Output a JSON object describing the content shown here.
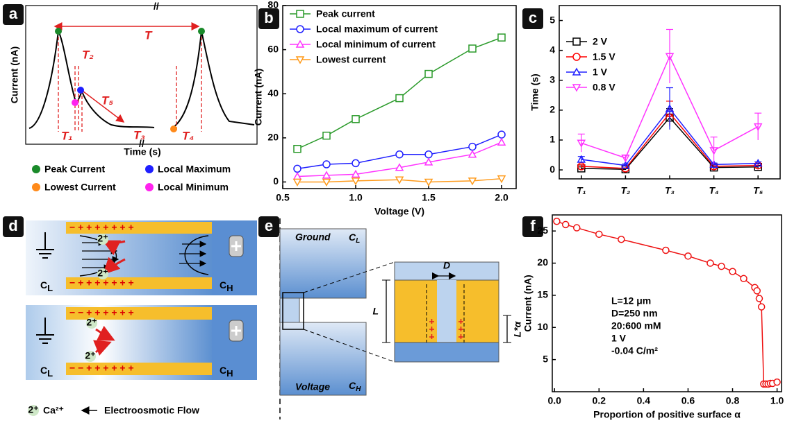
{
  "chart_data": [
    {
      "type": "line",
      "xlabel": "Voltage (V)",
      "ylabel": "Current (nA)",
      "legend": "upper left",
      "x": [
        0.6,
        0.8,
        1.0,
        1.3,
        1.5,
        1.8,
        2.0
      ],
      "series": [
        {
          "name": "Peak current",
          "color": "#2a9a2a",
          "marker": "square",
          "values": [
            15,
            21,
            28.5,
            38,
            49,
            60.5,
            65.5
          ]
        },
        {
          "name": "Local maximum of current",
          "color": "#1f1fff",
          "marker": "circle",
          "values": [
            6,
            8,
            8.5,
            12.5,
            12.5,
            16,
            21.5
          ]
        },
        {
          "name": "Local minimum of current",
          "color": "#ff33ff",
          "marker": "triangle",
          "values": [
            2.5,
            3,
            3.5,
            6.5,
            9,
            12.5,
            18
          ]
        },
        {
          "name": "Lowest current",
          "color": "#ff9a1a",
          "marker": "down",
          "values": [
            0,
            0,
            0.5,
            1,
            0,
            0.5,
            1.5
          ]
        }
      ],
      "xlim": [
        0.5,
        2.1
      ],
      "xticks": [
        0.5,
        {
          "value": 1,
          "label": "1.0"
        },
        1.5,
        {
          "value": 2,
          "label": "2.0"
        }
      ],
      "ylim": [
        -3,
        80
      ],
      "yticks": [
        0,
        20,
        40,
        60,
        80
      ]
    },
    {
      "type": "line",
      "ylabel": "Time (s)",
      "legend": "upper left",
      "categories": [
        "T₁",
        "T₂",
        "T₃",
        "T₄",
        "T₅"
      ],
      "series": [
        {
          "name": "2 V",
          "color": "#000000",
          "marker": "square",
          "values": [
            0.05,
            0.02,
            1.75,
            0.08,
            0.1
          ],
          "errors": [
            0.05,
            0.02,
            0.3,
            0.05,
            0.05
          ]
        },
        {
          "name": "1.5 V",
          "color": "#ff0000",
          "marker": "circle",
          "values": [
            0.12,
            0.05,
            1.9,
            0.12,
            0.15
          ],
          "errors": [
            0.05,
            0.02,
            0.4,
            0.05,
            0.05
          ]
        },
        {
          "name": "1 V",
          "color": "#1f1fff",
          "marker": "triangle",
          "values": [
            0.35,
            0.15,
            2.05,
            0.18,
            0.22
          ],
          "errors": [
            0.1,
            0.05,
            0.7,
            0.05,
            0.05
          ]
        },
        {
          "name": "0.8 V",
          "color": "#ff33ff",
          "marker": "down",
          "values": [
            0.9,
            0.4,
            3.8,
            0.65,
            1.45
          ],
          "errors": [
            0.3,
            0.1,
            0.9,
            0.45,
            0.45
          ]
        }
      ],
      "ylim": [
        -0.3,
        5.5
      ],
      "yticks": [
        0,
        1,
        2,
        3,
        4,
        5
      ]
    },
    {
      "type": "line",
      "xlabel": "Proportion of positive surface α",
      "ylabel": "Current (nA)",
      "annotations": [
        "L=12 μm",
        "D=250 nm",
        "20:600 mM",
        "1 V",
        "-0.04 C/m²"
      ],
      "x": [
        0.01,
        0.05,
        0.1,
        0.2,
        0.3,
        0.5,
        0.6,
        0.7,
        0.75,
        0.8,
        0.85,
        0.9,
        0.91,
        0.92,
        0.93,
        0.94,
        0.95,
        0.96,
        0.97,
        0.98,
        1.0
      ],
      "series": [
        {
          "name": null,
          "color": "#ee1111",
          "marker": "circle",
          "values": [
            26.5,
            26,
            25.5,
            24.5,
            23.7,
            22,
            21.1,
            20,
            19.5,
            18.7,
            17.6,
            16.2,
            15.7,
            14.5,
            13.2,
            1.2,
            1.2,
            1.2,
            1.3,
            1.3,
            1.5
          ]
        }
      ],
      "xlim": [
        -0.01,
        1.02
      ],
      "xticks": [
        {
          "value": 0,
          "label": "0.0"
        },
        0.2,
        0.4,
        0.6,
        0.8,
        {
          "value": 1,
          "label": "1.0"
        }
      ],
      "ylim": [
        0,
        27.5
      ],
      "yticks": [
        5,
        10,
        15,
        20,
        25
      ]
    }
  ],
  "panels": {
    "labels": [
      "a",
      "b",
      "c",
      "d",
      "e",
      "f"
    ],
    "a": {
      "ylabel": "Current (nA)",
      "xlabel": "Time (s)",
      "period": "T",
      "t1": "T₁",
      "t2": "T₂",
      "t3": "T₃",
      "t4": "T₄",
      "t5": "T₅",
      "legend": [
        "Peak Current",
        "Local Maximum",
        "Lowest Current",
        "Local Minimum"
      ]
    },
    "d": {
      "top_charges": "− + + + + + + +",
      "bottom_charges": "− + + + + + + +",
      "top2_charges": "− − + + + + + +",
      "bottom2_charges": "− − + + + + + +",
      "ion": "2⁺",
      "cl": {
        "base": "C",
        "sub": "L"
      },
      "ch": {
        "base": "C",
        "sub": "H"
      },
      "ca": "Ca²⁺",
      "flow": "Electroosmotic Flow"
    },
    "e": {
      "ground": "Ground",
      "voltage": "Voltage",
      "cl": {
        "base": "C",
        "sub": "L"
      },
      "ch": {
        "base": "C",
        "sub": "H"
      },
      "d": "D",
      "l": "L",
      "la": "L*α"
    }
  }
}
